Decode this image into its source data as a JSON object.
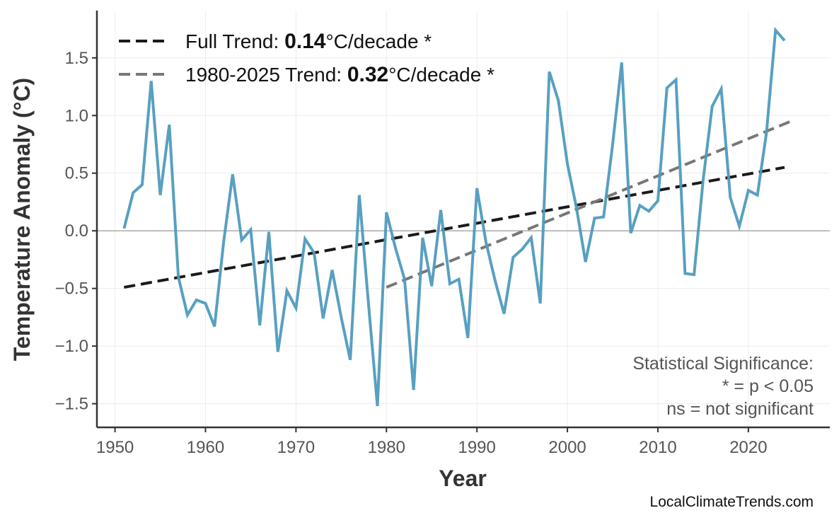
{
  "chart_data": {
    "type": "line",
    "xlabel": "Year",
    "ylabel": "Temperature Anomaly (°C)",
    "xlim": [
      1948,
      2029
    ],
    "ylim": [
      -1.705,
      1.91
    ],
    "grid": true,
    "xticks": [
      1950,
      1960,
      1970,
      1980,
      1990,
      2000,
      2010,
      2020
    ],
    "yticks": [
      -1.5,
      -1.0,
      -0.5,
      0.0,
      0.5,
      1.0,
      1.5
    ],
    "ytick_labels": [
      "−1.5",
      "−1.0",
      "−0.5",
      "0.0",
      "0.5",
      "1.0",
      "1.5"
    ],
    "series": [
      {
        "name": "Temperature Anomaly",
        "color": "#4f9bbd",
        "x": [
          1951,
          1952,
          1953,
          1954,
          1955,
          1956,
          1957,
          1958,
          1959,
          1960,
          1961,
          1962,
          1963,
          1964,
          1965,
          1966,
          1967,
          1968,
          1969,
          1970,
          1971,
          1972,
          1973,
          1974,
          1975,
          1976,
          1977,
          1978,
          1979,
          1980,
          1981,
          1982,
          1983,
          1984,
          1985,
          1986,
          1987,
          1988,
          1989,
          1990,
          1991,
          1992,
          1993,
          1994,
          1995,
          1996,
          1997,
          1998,
          1999,
          2000,
          2001,
          2002,
          2003,
          2004,
          2005,
          2006,
          2007,
          2008,
          2009,
          2010,
          2011,
          2012,
          2013,
          2014,
          2015,
          2016,
          2017,
          2018,
          2019,
          2020,
          2021,
          2022,
          2023,
          2024
        ],
        "y": [
          0.02,
          0.33,
          0.4,
          1.3,
          0.31,
          0.92,
          -0.4,
          -0.73,
          -0.6,
          -0.63,
          -0.83,
          -0.1,
          0.49,
          -0.08,
          0.01,
          -0.82,
          -0.01,
          -1.05,
          -0.52,
          -0.67,
          -0.07,
          -0.19,
          -0.76,
          -0.34,
          -0.75,
          -1.12,
          0.31,
          -0.62,
          -1.52,
          0.16,
          -0.15,
          -0.42,
          -1.38,
          -0.06,
          -0.48,
          0.18,
          -0.46,
          -0.42,
          -0.93,
          0.37,
          -0.1,
          -0.43,
          -0.72,
          -0.23,
          -0.16,
          -0.06,
          -0.63,
          1.38,
          1.13,
          0.58,
          0.2,
          -0.27,
          0.11,
          0.12,
          0.75,
          1.46,
          -0.02,
          0.22,
          0.17,
          0.26,
          1.24,
          1.31,
          -0.37,
          -0.38,
          0.44,
          1.08,
          1.23,
          0.29,
          0.04,
          0.35,
          0.31,
          0.85,
          1.74,
          1.65
        ]
      }
    ],
    "trends": [
      {
        "name": "Full Trend",
        "color": "#1a1a1a",
        "x": [
          1951,
          2024
        ],
        "y": [
          -0.49,
          0.55
        ],
        "label_prefix": "Full Trend: ",
        "value": "0.14",
        "label_suffix": "°C/decade *"
      },
      {
        "name": "1980-2025 Trend",
        "color": "#777777",
        "x": [
          1980,
          2025
        ],
        "y": [
          -0.49,
          0.96
        ],
        "label_prefix": "1980-2025 Trend: ",
        "value": "0.32",
        "label_suffix": "°C/decade *"
      }
    ],
    "legend_position": "top-left",
    "annotation": [
      "Statistical Significance:",
      "* = p < 0.05",
      "ns = not significant"
    ],
    "watermark": "LocalClimateTrends.com"
  }
}
